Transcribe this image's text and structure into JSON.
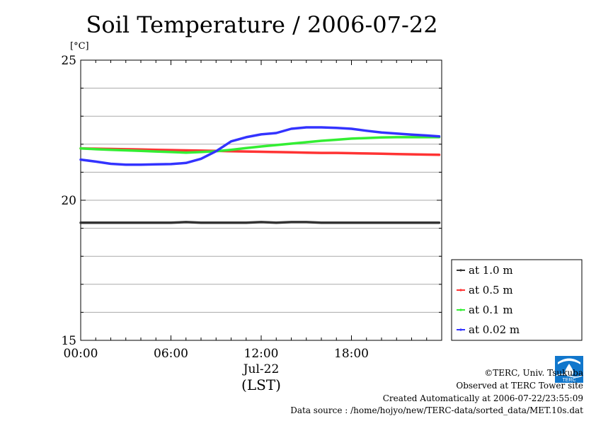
{
  "chart_data": {
    "type": "line",
    "title": "Soil Temperature / 2006-07-22",
    "ylabel": "[°C]",
    "xlabel": "(LST)",
    "x_date_label": "Jul-22",
    "ylim": [
      15,
      25
    ],
    "y_ticks": [
      15,
      20,
      25
    ],
    "y_minor_step": 1,
    "xlim": [
      "00:00",
      "24:00"
    ],
    "x_ticks": [
      "00:00",
      "06:00",
      "12:00",
      "18:00"
    ],
    "grid": true,
    "legend_position": "right",
    "x": [
      "00:00",
      "01:00",
      "02:00",
      "03:00",
      "04:00",
      "05:00",
      "06:00",
      "07:00",
      "08:00",
      "09:00",
      "10:00",
      "11:00",
      "12:00",
      "13:00",
      "14:00",
      "15:00",
      "16:00",
      "17:00",
      "18:00",
      "19:00",
      "20:00",
      "21:00",
      "22:00",
      "23:00",
      "23:50"
    ],
    "series": [
      {
        "name": "at 1.0 m",
        "color": "#333333",
        "values": [
          19.2,
          19.2,
          19.2,
          19.2,
          19.2,
          19.2,
          19.2,
          19.22,
          19.2,
          19.2,
          19.2,
          19.2,
          19.22,
          19.2,
          19.22,
          19.22,
          19.2,
          19.2,
          19.2,
          19.2,
          19.2,
          19.2,
          19.2,
          19.2,
          19.2
        ]
      },
      {
        "name": "at 0.5 m",
        "color": "#ff3333",
        "values": [
          21.85,
          21.84,
          21.83,
          21.82,
          21.81,
          21.8,
          21.79,
          21.78,
          21.77,
          21.76,
          21.75,
          21.74,
          21.73,
          21.72,
          21.71,
          21.7,
          21.69,
          21.69,
          21.68,
          21.67,
          21.66,
          21.65,
          21.64,
          21.63,
          21.62
        ]
      },
      {
        "name": "at 0.1 m",
        "color": "#33ee33",
        "values": [
          21.85,
          21.82,
          21.8,
          21.78,
          21.76,
          21.74,
          21.72,
          21.7,
          21.72,
          21.75,
          21.8,
          21.86,
          21.92,
          21.97,
          22.02,
          22.07,
          22.12,
          22.16,
          22.2,
          22.22,
          22.24,
          22.25,
          22.25,
          22.25,
          22.25
        ]
      },
      {
        "name": "at 0.02 m",
        "color": "#3333ff",
        "values": [
          21.45,
          21.38,
          21.3,
          21.27,
          21.27,
          21.28,
          21.29,
          21.33,
          21.48,
          21.75,
          22.1,
          22.25,
          22.35,
          22.4,
          22.55,
          22.6,
          22.6,
          22.58,
          22.55,
          22.48,
          22.42,
          22.38,
          22.34,
          22.31,
          22.28
        ]
      }
    ]
  },
  "credits": {
    "copyright": "©TERC, Univ. Tsukuba",
    "observed": "Observed at TERC Tower site",
    "created": "Created Automatically at 2006-07-22/23:55:09",
    "source": "Data source : /home/hojyo/new/TERC-data/sorted_data/MET.10s.dat",
    "logo_text": "TERC"
  }
}
